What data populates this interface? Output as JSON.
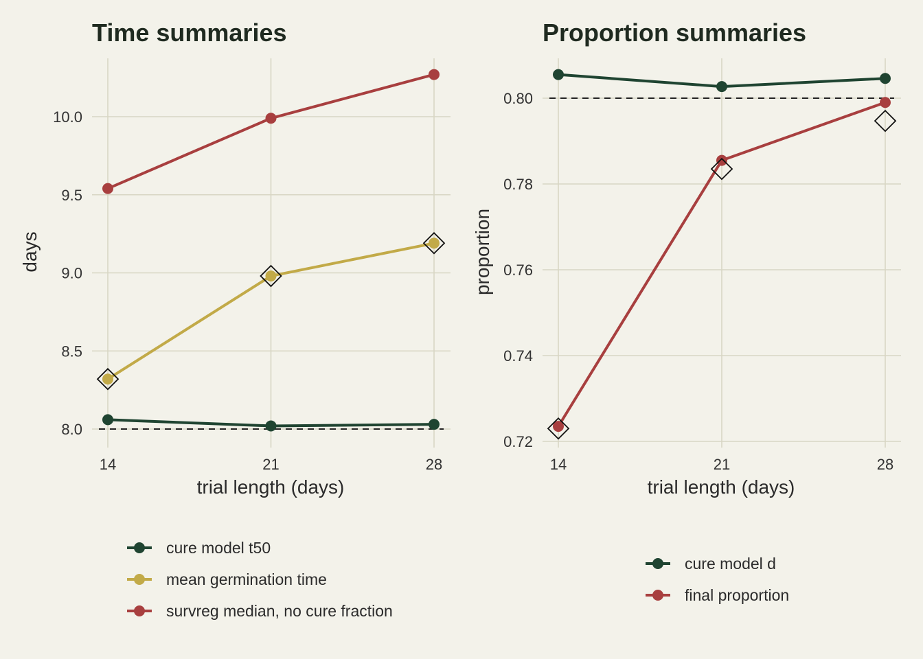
{
  "colors": {
    "background": "#f3f2ea",
    "grid": "#d8d6c4",
    "dark_green": "#1f4431",
    "gold": "#c2aa48",
    "red": "#a83f3f",
    "reference_line": "#222222"
  },
  "chart_data": [
    {
      "type": "line",
      "title": "Time summaries",
      "xlabel": "trial length (days)",
      "ylabel": "days",
      "x": [
        14,
        21,
        28
      ],
      "xlim": [
        14,
        28
      ],
      "ylim": [
        8.0,
        10.3
      ],
      "yticks": [
        8.0,
        8.5,
        9.0,
        9.5,
        10.0
      ],
      "ytick_labels": [
        "8.0",
        "8.5",
        "9.0",
        "9.5",
        "10.0"
      ],
      "xtick_labels": [
        "14",
        "21",
        "28"
      ],
      "reference_line": 8.0,
      "grid": true,
      "series": [
        {
          "name": "cure model t50",
          "color": "#1f4431",
          "values": [
            8.06,
            8.02,
            8.03
          ]
        },
        {
          "name": "mean germination time",
          "color": "#c2aa48",
          "values": [
            8.32,
            8.98,
            9.19
          ]
        },
        {
          "name": "survreg median, no cure fraction",
          "color": "#a83f3f",
          "values": [
            9.54,
            9.99,
            10.27
          ]
        }
      ],
      "reference_markers": {
        "shape": "diamond-outline",
        "x": [
          14,
          21,
          28
        ],
        "values": [
          8.32,
          8.98,
          9.19
        ]
      },
      "legend_position": "bottom"
    },
    {
      "type": "line",
      "title": "Proportion summaries",
      "xlabel": "trial length (days)",
      "ylabel": "proportion",
      "x": [
        14,
        21,
        28
      ],
      "xlim": [
        14,
        28
      ],
      "ylim": [
        0.72,
        0.81
      ],
      "yticks": [
        0.72,
        0.74,
        0.76,
        0.78,
        0.8
      ],
      "ytick_labels": [
        "0.72",
        "0.74",
        "0.76",
        "0.78",
        "0.80"
      ],
      "xtick_labels": [
        "14",
        "21",
        "28"
      ],
      "reference_line": 0.8,
      "grid": true,
      "series": [
        {
          "name": "cure model d",
          "color": "#1f4431",
          "values": [
            0.8055,
            0.8027,
            0.8046
          ]
        },
        {
          "name": "final proportion",
          "color": "#a83f3f",
          "values": [
            0.7235,
            0.7855,
            0.799
          ]
        }
      ],
      "reference_markers": {
        "shape": "diamond-outline",
        "x": [
          14,
          21,
          28
        ],
        "values": [
          0.723,
          0.7835,
          0.7947
        ]
      },
      "legend_position": "bottom"
    }
  ]
}
